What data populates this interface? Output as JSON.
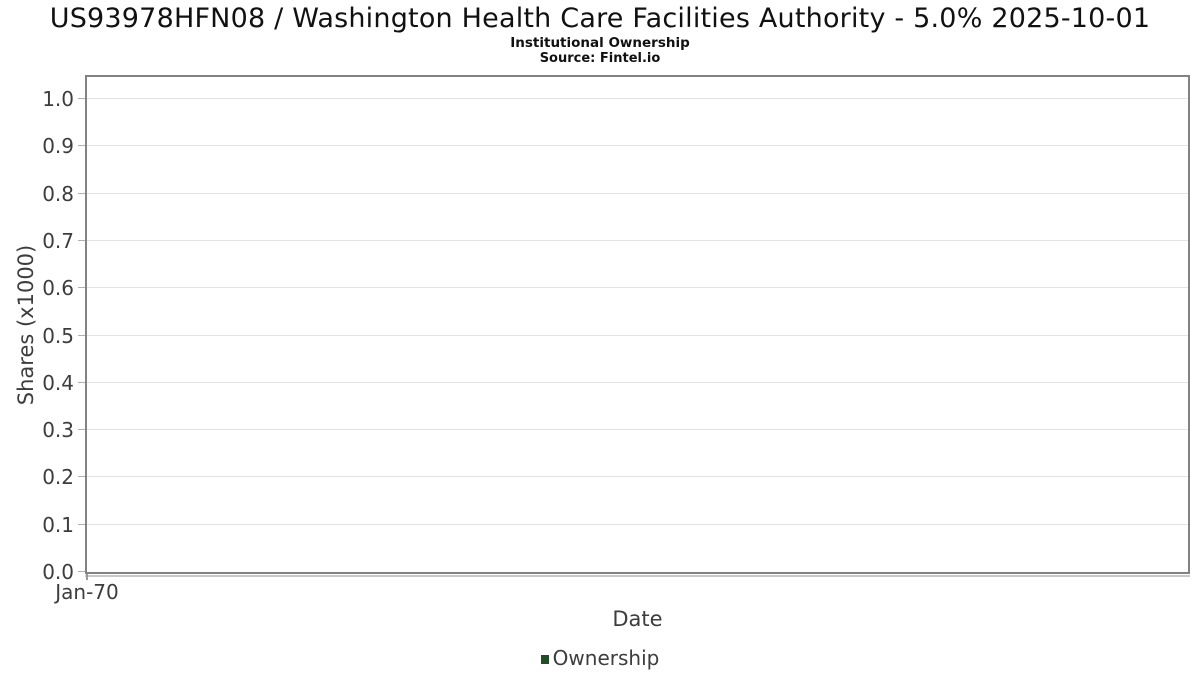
{
  "chart_data": {
    "type": "line",
    "title": "US93978HFN08 / Washington Health Care Facilities Authority - 5.0% 2025-10-01",
    "subtitle": "Institutional Ownership",
    "source_label": "Source: Fintel.io",
    "xlabel": "Date",
    "ylabel": "Shares (x1000)",
    "x_ticks": [
      "Jan-70"
    ],
    "y_ticks": [
      "0.0",
      "0.1",
      "0.2",
      "0.3",
      "0.4",
      "0.5",
      "0.6",
      "0.7",
      "0.8",
      "0.9",
      "1.0"
    ],
    "ylim": [
      0.0,
      1.046
    ],
    "grid": "horizontal",
    "legend_position": "bottom",
    "legend": [
      {
        "label": "Ownership",
        "color": "#1f4d25"
      }
    ],
    "series": [
      {
        "name": "Ownership",
        "x": [],
        "values": []
      }
    ]
  },
  "colors": {
    "background": "#ffffff",
    "plot_border": "#828282",
    "gridline": "#e3e3e3",
    "tick_mark": "#b0b0b0",
    "axis_text": "#3d3d3d",
    "title_text": "#111111",
    "legend_green": "#1f4d25"
  }
}
